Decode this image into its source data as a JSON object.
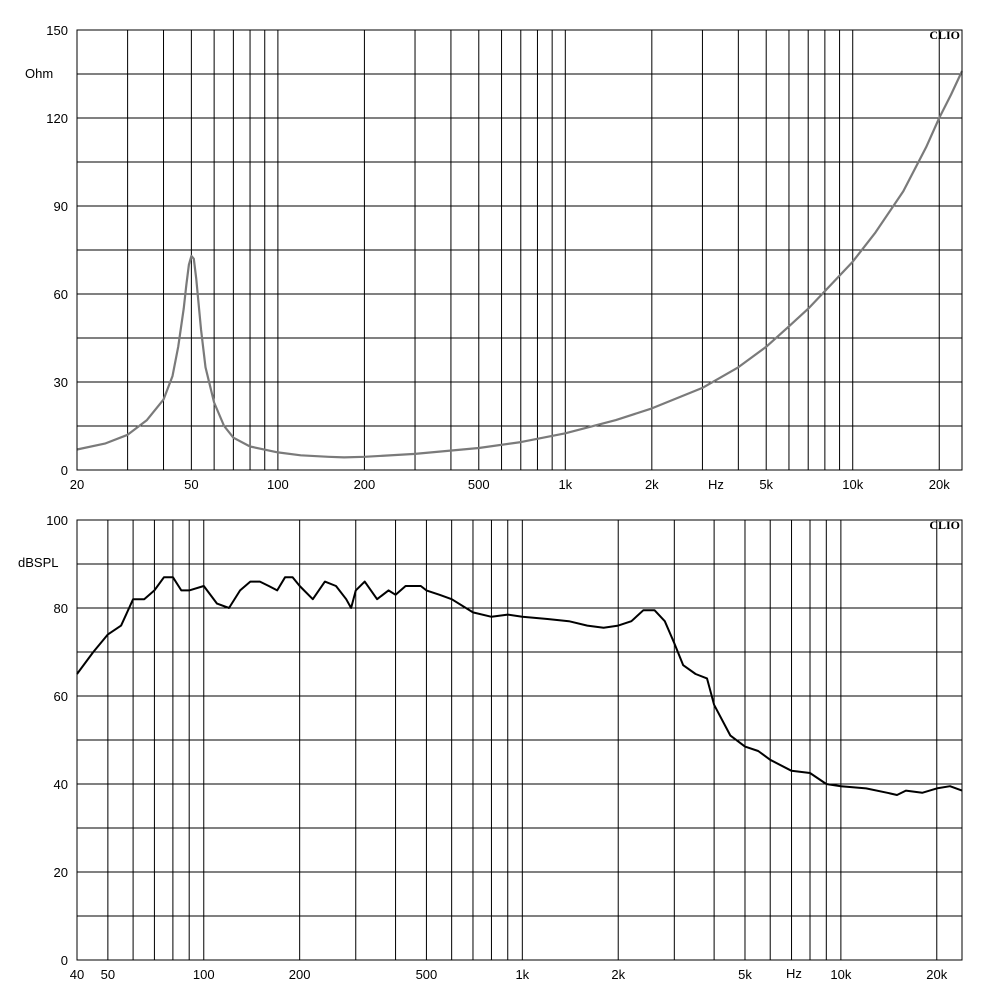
{
  "chart_data": [
    {
      "type": "line",
      "brand": "CLIO",
      "ylabel": "Ohm",
      "xlabel": "Hz",
      "xscale": "log",
      "xlim": [
        20,
        24000
      ],
      "ylim": [
        0,
        150
      ],
      "y_ticks": [
        0,
        30,
        60,
        90,
        120,
        150
      ],
      "x_tick_labels": [
        {
          "v": 20,
          "t": "20"
        },
        {
          "v": 50,
          "t": "50"
        },
        {
          "v": 100,
          "t": "100"
        },
        {
          "v": 200,
          "t": "200"
        },
        {
          "v": 500,
          "t": "500"
        },
        {
          "v": 1000,
          "t": "1k"
        },
        {
          "v": 2000,
          "t": "2k"
        },
        {
          "v": 5000,
          "t": "5k"
        },
        {
          "v": 10000,
          "t": "10k"
        },
        {
          "v": 20000,
          "t": "20k"
        }
      ],
      "grid": true,
      "line_color": "#7a7a7a",
      "series": [
        {
          "x": [
            20,
            25,
            30,
            35,
            40,
            43,
            45,
            47,
            48,
            49,
            50,
            51,
            52,
            54,
            56,
            60,
            65,
            70,
            80,
            100,
            120,
            150,
            170,
            200,
            300,
            500,
            700,
            1000,
            1500,
            2000,
            3000,
            4000,
            5000,
            6000,
            7000,
            8000,
            10000,
            12000,
            15000,
            18000,
            20000,
            22000,
            24000
          ],
          "y": [
            7,
            9,
            12,
            17,
            24,
            32,
            42,
            55,
            63,
            70,
            73,
            72,
            65,
            48,
            35,
            23,
            15,
            11,
            8,
            6,
            5,
            4.5,
            4.3,
            4.5,
            5.5,
            7.5,
            9.5,
            12.5,
            17,
            21,
            28,
            35,
            42,
            49,
            55,
            61,
            71,
            81,
            95,
            110,
            120,
            128,
            136
          ]
        }
      ]
    },
    {
      "type": "line",
      "brand": "CLIO",
      "ylabel": "dBSPL",
      "xlabel": "Hz",
      "xscale": "log",
      "xlim": [
        40,
        24000
      ],
      "ylim": [
        0,
        100
      ],
      "y_ticks": [
        0,
        20,
        40,
        60,
        80,
        100
      ],
      "x_tick_labels": [
        {
          "v": 40,
          "t": "40"
        },
        {
          "v": 50,
          "t": "50"
        },
        {
          "v": 100,
          "t": "100"
        },
        {
          "v": 200,
          "t": "200"
        },
        {
          "v": 500,
          "t": "500"
        },
        {
          "v": 1000,
          "t": "1k"
        },
        {
          "v": 2000,
          "t": "2k"
        },
        {
          "v": 5000,
          "t": "5k"
        },
        {
          "v": 10000,
          "t": "10k"
        },
        {
          "v": 20000,
          "t": "20k"
        }
      ],
      "grid": true,
      "line_color": "#000000",
      "series": [
        {
          "x": [
            40,
            45,
            50,
            55,
            60,
            65,
            70,
            75,
            80,
            85,
            90,
            100,
            110,
            120,
            130,
            140,
            150,
            160,
            170,
            180,
            190,
            200,
            220,
            240,
            260,
            280,
            290,
            300,
            320,
            350,
            380,
            400,
            430,
            450,
            480,
            500,
            550,
            600,
            700,
            800,
            900,
            1000,
            1200,
            1400,
            1600,
            1800,
            2000,
            2200,
            2400,
            2600,
            2800,
            3000,
            3200,
            3500,
            3800,
            4000,
            4500,
            5000,
            5500,
            6000,
            7000,
            8000,
            9000,
            10000,
            12000,
            14000,
            15000,
            16000,
            18000,
            20000,
            22000,
            24000
          ],
          "y": [
            65,
            70,
            74,
            76,
            82,
            82,
            84,
            87,
            87,
            84,
            84,
            85,
            81,
            80,
            84,
            86,
            86,
            85,
            84,
            87,
            87,
            85,
            82,
            86,
            85,
            82,
            80,
            84,
            86,
            82,
            84,
            83,
            85,
            85,
            85,
            84,
            83,
            82,
            79,
            78,
            78.5,
            78,
            77.5,
            77,
            76,
            75.5,
            76,
            77,
            79.5,
            79.5,
            77,
            72,
            67,
            65,
            64,
            58,
            51,
            48.5,
            47.5,
            45.5,
            43,
            42.5,
            40,
            39.5,
            39,
            38,
            37.5,
            38.5,
            38,
            39,
            39.5,
            38.5
          ]
        }
      ]
    }
  ]
}
